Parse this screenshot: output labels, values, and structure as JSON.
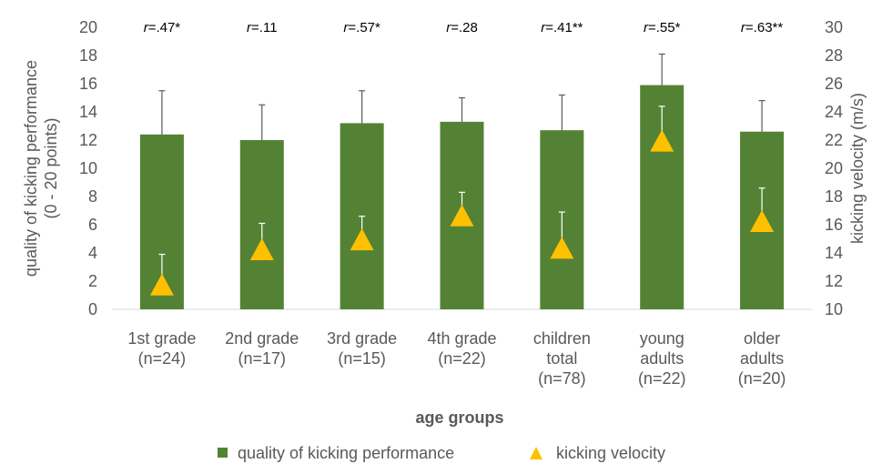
{
  "chart_data": {
    "type": "bar",
    "categories": [
      [
        "1st grade",
        "(n=24)"
      ],
      [
        "2nd grade",
        "(n=17)"
      ],
      [
        "3rd grade",
        "(n=15)"
      ],
      [
        "4th grade",
        "(n=22)"
      ],
      [
        "children",
        "total",
        "(n=78)"
      ],
      [
        "young",
        "adults",
        "(n=22)"
      ],
      [
        "older",
        "adults",
        "(n=20)"
      ]
    ],
    "series": [
      {
        "name": "quality of kicking performance",
        "kind": "bar",
        "axis": "left",
        "color": "#548235",
        "values": [
          12.4,
          12.0,
          13.2,
          13.3,
          12.7,
          15.9,
          12.6
        ],
        "error_plus": [
          3.1,
          2.5,
          2.3,
          1.7,
          2.5,
          2.2,
          2.2
        ]
      },
      {
        "name": "kicking velocity",
        "kind": "marker",
        "marker": "triangle",
        "axis": "right",
        "color": "#FFC000",
        "values": [
          11.7,
          14.2,
          14.9,
          16.6,
          14.3,
          21.9,
          16.2
        ],
        "error_plus": [
          2.2,
          1.9,
          1.7,
          1.7,
          2.6,
          2.5,
          2.4
        ]
      }
    ],
    "correlations": [
      {
        "italic": "r",
        "text": "=.47*"
      },
      {
        "italic": "r",
        "text": "=.11"
      },
      {
        "italic": "r",
        "text": "=.57*"
      },
      {
        "italic": "r",
        "text": "=.28"
      },
      {
        "italic": "r",
        "text": "=.41**"
      },
      {
        "italic": "r",
        "text": "=.55*"
      },
      {
        "italic": "r",
        "text": "=.63**"
      }
    ],
    "xlabel": "age groups",
    "ylabel_left": [
      "quality of kicking performance",
      "(0 - 20 points)"
    ],
    "ylabel_right": "kicking velocity (m/s)",
    "ylim_left": [
      0,
      20
    ],
    "yticks_left": [
      0,
      2,
      4,
      6,
      8,
      10,
      12,
      14,
      16,
      18,
      20
    ],
    "ylim_right": [
      10,
      30
    ],
    "yticks_right": [
      10,
      12,
      14,
      16,
      18,
      20,
      22,
      24,
      26,
      28,
      30
    ],
    "grid": false,
    "legend_position": "bottom"
  }
}
